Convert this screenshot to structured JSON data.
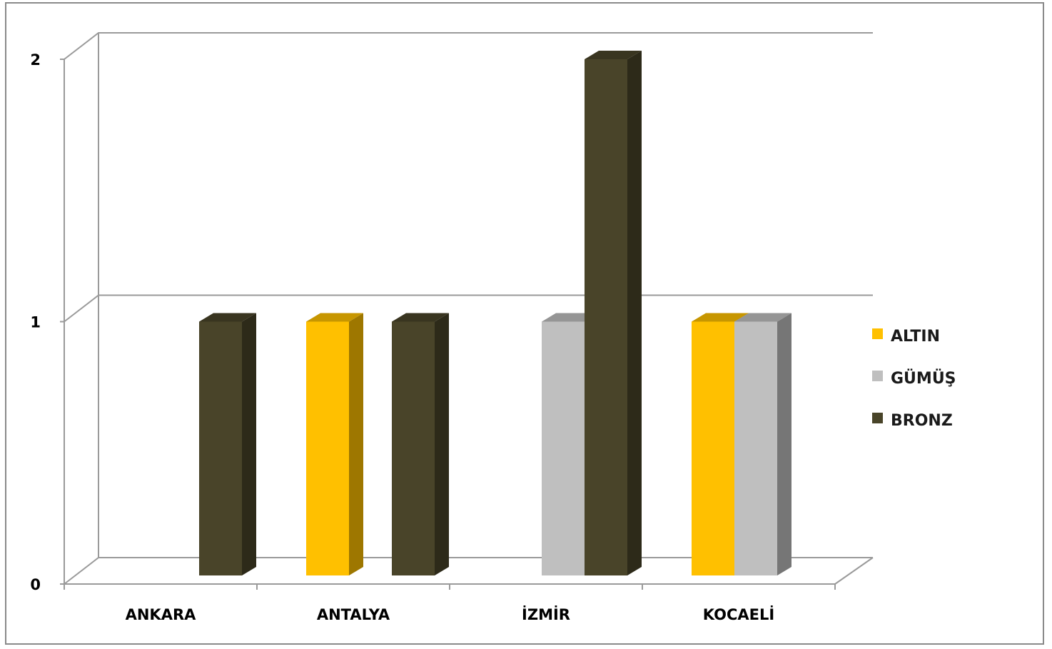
{
  "chart_data": {
    "type": "bar",
    "style": "3d-clustered-column",
    "title": "",
    "xlabel": "",
    "ylabel": "",
    "categories": [
      "ANKARA",
      "ANTALYA",
      "İZMİR",
      "KOCAELİ"
    ],
    "series": [
      {
        "name": "ALTIN",
        "values": [
          0,
          1,
          0,
          1
        ],
        "color": "#FFC000"
      },
      {
        "name": "GÜMÜŞ",
        "values": [
          0,
          0,
          1,
          1
        ],
        "color": "#BFBFBF"
      },
      {
        "name": "BRONZ",
        "values": [
          1,
          1,
          2,
          0
        ],
        "color": "#494429"
      }
    ],
    "ylim": [
      0,
      2
    ],
    "yticks": [
      "0",
      "1",
      "2"
    ],
    "grid": true,
    "legend_position": "right"
  }
}
